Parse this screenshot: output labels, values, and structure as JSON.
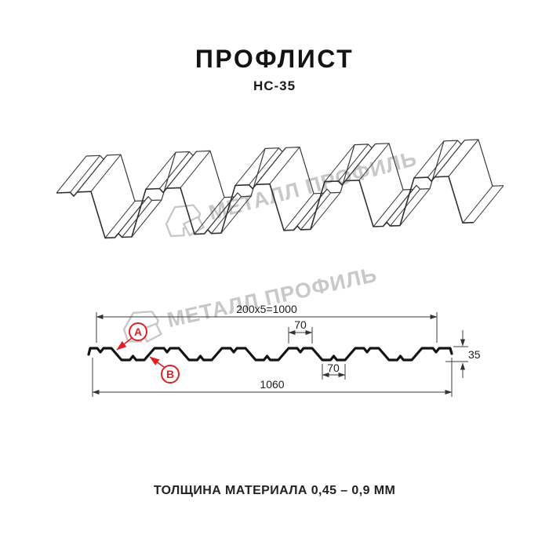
{
  "header": {
    "title": "ПРОФЛИСТ",
    "subtitle": "НС-35"
  },
  "watermark": {
    "brand": "МЕТАЛЛ ПРОФИЛЬ"
  },
  "cross_section": {
    "dim_top_pitch": "200x5=1000",
    "dim_crest_width": "70",
    "dim_valley_width": "70",
    "dim_overall_width": "1060",
    "dim_height": "35",
    "label_a": "А",
    "label_b": "В"
  },
  "footer": {
    "thickness_note": "ТОЛЩИНА МАТЕРИАЛА 0,45 – 0,9 ММ"
  },
  "colors": {
    "accent_red": "#e31e24",
    "line_dark": "#2d2d2d",
    "watermark_grey": "#c8c8c8"
  }
}
